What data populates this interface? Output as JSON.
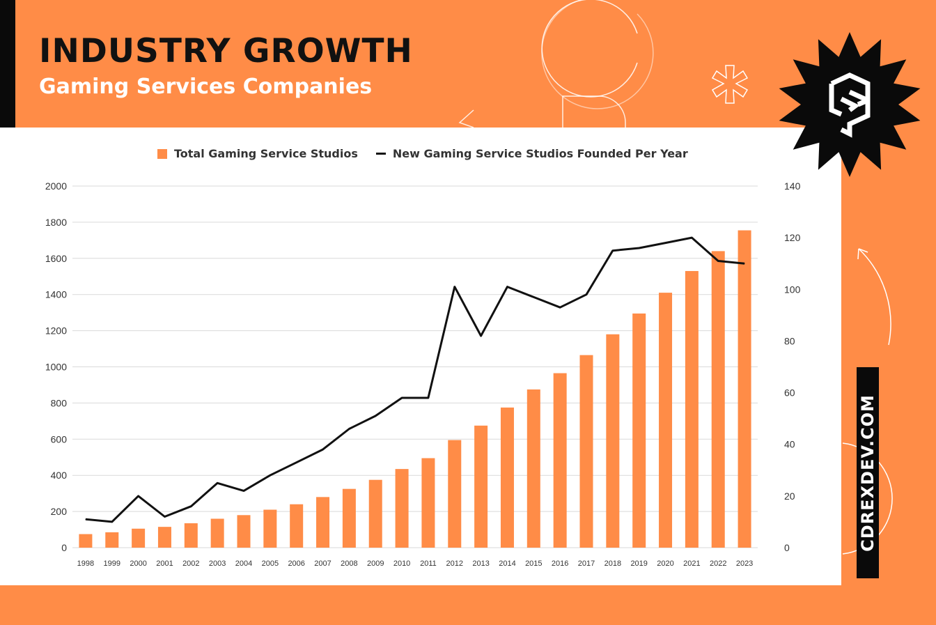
{
  "header": {
    "title": "INDUSTRY GROWTH",
    "subtitle": "Gaming Services Companies"
  },
  "branding": {
    "badge_icon": "cdrex-logo-icon",
    "vertical_url": "CDREXDEV.COM",
    "brand_color": "#ff8c47",
    "dark_color": "#0a0a0a"
  },
  "chart_data": {
    "type": "bar",
    "categories": [
      "1998",
      "1999",
      "2000",
      "2001",
      "2002",
      "2003",
      "2004",
      "2005",
      "2006",
      "2007",
      "2008",
      "2009",
      "2010",
      "2011",
      "2012",
      "2013",
      "2014",
      "2015",
      "2016",
      "2017",
      "2018",
      "2019",
      "2020",
      "2021",
      "2022",
      "2023"
    ],
    "series": [
      {
        "name": "Total Gaming Service Studios",
        "type": "bar",
        "axis": "left",
        "color": "#ff8c47",
        "values": [
          75,
          85,
          105,
          115,
          135,
          160,
          180,
          210,
          240,
          280,
          325,
          375,
          435,
          495,
          595,
          675,
          775,
          875,
          965,
          1065,
          1180,
          1295,
          1410,
          1530,
          1640,
          1755
        ]
      },
      {
        "name": "New Gaming Service Studios Founded Per Year",
        "type": "line",
        "axis": "right",
        "color": "#111111",
        "values": [
          11,
          10,
          20,
          12,
          16,
          25,
          22,
          28,
          33,
          38,
          46,
          51,
          58,
          58,
          101,
          82,
          101,
          97,
          93,
          98,
          115,
          116,
          118,
          120,
          111,
          110
        ]
      }
    ],
    "y_left": {
      "ylim": [
        0,
        2000
      ],
      "ticks": [
        0,
        200,
        400,
        600,
        800,
        1000,
        1200,
        1400,
        1600,
        1800,
        2000
      ]
    },
    "y_right": {
      "ylim": [
        0,
        140
      ],
      "ticks": [
        0,
        20,
        40,
        60,
        80,
        100,
        120,
        140
      ]
    },
    "grid": true,
    "legend_position": "top"
  }
}
